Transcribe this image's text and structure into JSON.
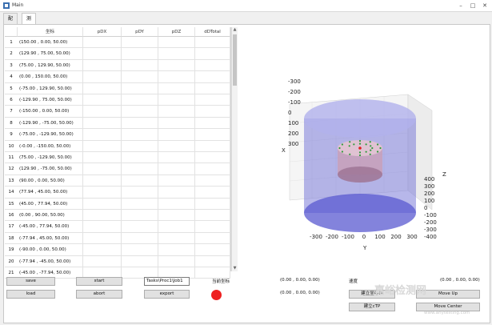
{
  "window": {
    "title": "Main"
  },
  "tabs": [
    {
      "label": "配置"
    },
    {
      "label": "测试"
    }
  ],
  "table": {
    "headers": [
      "坐标",
      "pDX",
      "pDY",
      "pDZ",
      "dDTotal"
    ],
    "rows": [
      {
        "n": "1",
        "coord": "(150.00 , 0.00, 50.00)"
      },
      {
        "n": "2",
        "coord": "(129.90 , 75.00, 50.00)"
      },
      {
        "n": "3",
        "coord": "(75.00 , 129.90, 50.00)"
      },
      {
        "n": "4",
        "coord": "(0.00 , 150.00, 50.00)"
      },
      {
        "n": "5",
        "coord": "(-75.00 , 129.90, 50.00)"
      },
      {
        "n": "6",
        "coord": "(-129.90 , 75.00, 50.00)"
      },
      {
        "n": "7",
        "coord": "(-150.00 , 0.00, 50.00)"
      },
      {
        "n": "8",
        "coord": "(-129.90 , -75.00, 50.00)"
      },
      {
        "n": "9",
        "coord": "(-75.00 , -129.90, 50.00)"
      },
      {
        "n": "10",
        "coord": "(-0.00 , -150.00, 50.00)"
      },
      {
        "n": "11",
        "coord": "(75.00 , -129.90, 50.00)"
      },
      {
        "n": "12",
        "coord": "(129.90 , -75.00, 50.00)"
      },
      {
        "n": "13",
        "coord": "(90.00 , 0.00, 50.00)"
      },
      {
        "n": "14",
        "coord": "(77.94 , 45.00, 50.00)"
      },
      {
        "n": "15",
        "coord": "(45.00 , 77.94, 50.00)"
      },
      {
        "n": "16",
        "coord": "(0.00 , 90.00, 50.00)"
      },
      {
        "n": "17",
        "coord": "(-45.00 , 77.94, 50.00)"
      },
      {
        "n": "18",
        "coord": "(-77.94 , 45.00, 50.00)"
      },
      {
        "n": "19",
        "coord": "(-90.00 , 0.00, 50.00)"
      },
      {
        "n": "20",
        "coord": "(-77.94 , -45.00, 50.00)"
      },
      {
        "n": "21",
        "coord": "(-45.00 , -77.94, 50.00)"
      }
    ]
  },
  "controls": {
    "save": "save",
    "load": "load",
    "start": "start",
    "abort": "abort",
    "export": "export",
    "task_path": "Tasks\\Proc1\\Job1",
    "current_coord_label": "当前坐标",
    "coord_a": "(0.00 , 0.00, 0.00)",
    "coord_b": "(0.00 , 0.00, 0.00)",
    "speed_label": "速度",
    "coord_c": "(0.00 , 0.00, 0.00)",
    "btn_build_coord": "建立坐标系",
    "btn_build_tcp": "建立cTP",
    "move_up": "Move Up",
    "move_center": "Move Center",
    "status_color": "#ee2020"
  },
  "plot3d": {
    "axis_x_label": "X",
    "axis_y_label": "Y",
    "axis_z_label": "Z",
    "x_ticks": [
      "-300",
      "-200",
      "-100",
      "0",
      "100",
      "200",
      "300"
    ],
    "y_ticks": [
      "-300",
      "-200",
      "-100",
      "0",
      "100",
      "200",
      "300"
    ],
    "z_ticks": [
      "400",
      "300",
      "200",
      "100",
      "0",
      "-100",
      "-200",
      "-300",
      "-400"
    ]
  },
  "watermark": {
    "main": "嘉峪检测网",
    "sub": "www.anytesting.com"
  }
}
